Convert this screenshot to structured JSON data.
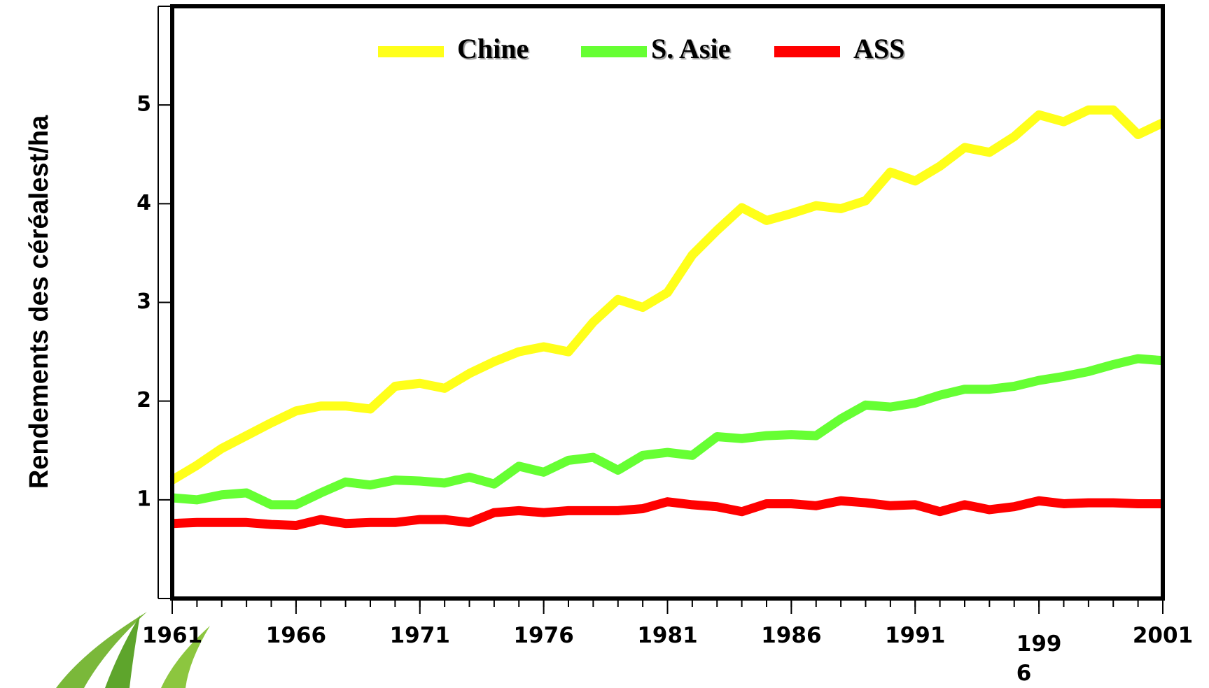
{
  "chart_data": {
    "type": "line",
    "y_label": "Rendements  des céréalest/ha",
    "x": [
      1961,
      1962,
      1963,
      1964,
      1965,
      1966,
      1967,
      1968,
      1969,
      1970,
      1971,
      1972,
      1973,
      1974,
      1975,
      1976,
      1977,
      1978,
      1979,
      1980,
      1981,
      1982,
      1983,
      1984,
      1985,
      1986,
      1987,
      1988,
      1989,
      1990,
      1991,
      1992,
      1993,
      1994,
      1995,
      1996,
      1997,
      1998,
      1999,
      2000,
      2001
    ],
    "series": [
      {
        "name": "Chine",
        "color": "#ffff1a",
        "values": [
          1.2,
          1.35,
          1.52,
          1.65,
          1.78,
          1.9,
          1.95,
          1.95,
          1.92,
          2.15,
          2.18,
          2.13,
          2.28,
          2.4,
          2.5,
          2.55,
          2.5,
          2.8,
          3.03,
          2.95,
          3.1,
          3.48,
          3.73,
          3.96,
          3.83,
          3.9,
          3.98,
          3.95,
          4.03,
          4.32,
          4.23,
          4.38,
          4.57,
          4.52,
          4.68,
          4.9,
          4.83,
          4.95,
          4.95,
          4.7,
          4.82
        ]
      },
      {
        "name": "S. Asie",
        "color": "#66ff33",
        "values": [
          1.02,
          1.0,
          1.05,
          1.07,
          0.95,
          0.95,
          1.07,
          1.18,
          1.15,
          1.2,
          1.19,
          1.17,
          1.23,
          1.16,
          1.34,
          1.28,
          1.4,
          1.43,
          1.3,
          1.45,
          1.48,
          1.45,
          1.64,
          1.62,
          1.65,
          1.66,
          1.65,
          1.82,
          1.96,
          1.94,
          1.98,
          2.06,
          2.12,
          2.12,
          2.15,
          2.21,
          2.25,
          2.3,
          2.37,
          2.43,
          2.41
        ]
      },
      {
        "name": "ASS",
        "color": "#ff0000",
        "values": [
          0.76,
          0.77,
          0.77,
          0.77,
          0.75,
          0.74,
          0.8,
          0.76,
          0.77,
          0.77,
          0.8,
          0.8,
          0.77,
          0.87,
          0.89,
          0.87,
          0.89,
          0.89,
          0.89,
          0.91,
          0.98,
          0.95,
          0.93,
          0.88,
          0.96,
          0.96,
          0.94,
          0.99,
          0.97,
          0.94,
          0.95,
          0.88,
          0.95,
          0.9,
          0.93,
          0.99,
          0.96,
          0.97,
          0.97,
          0.96,
          0.96
        ]
      }
    ],
    "xlim": [
      1961,
      2001
    ],
    "xticks": [
      1961,
      1966,
      1971,
      1976,
      1981,
      1986,
      1991,
      {
        "value": 1996,
        "label": "199\n6"
      },
      2001
    ],
    "ylim": [
      0,
      6
    ],
    "yticks": [
      1,
      2,
      3,
      4,
      5
    ],
    "legend": "top"
  }
}
